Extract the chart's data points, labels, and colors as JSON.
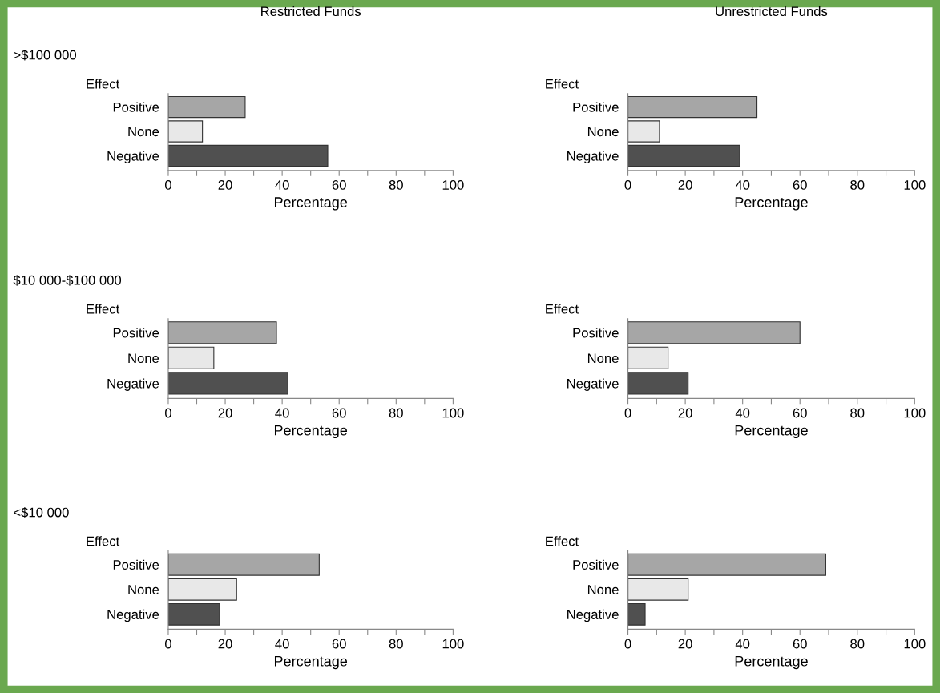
{
  "chart_data": [
    {
      "type": "bar",
      "orientation": "horizontal",
      "title": "Restricted Funds",
      "subtitle": ">$100 000",
      "ylabel": "Effect",
      "xlabel": "Percentage",
      "categories": [
        "Positive",
        "None",
        "Negative"
      ],
      "values": [
        27,
        12,
        56
      ],
      "colors": [
        "#a6a6a6",
        "#e8e8e8",
        "#505050"
      ],
      "xlim": [
        0,
        100
      ],
      "xticks": [
        0,
        {
          "value": 10,
          "label": null
        },
        20,
        {
          "value": 30,
          "label": null
        },
        40,
        {
          "value": 50,
          "label": null
        },
        60,
        {
          "value": 70,
          "label": null
        },
        80,
        {
          "value": 90,
          "label": null
        },
        100
      ]
    },
    {
      "type": "bar",
      "orientation": "horizontal",
      "title": "Unrestricted Funds",
      "ylabel": "Effect",
      "xlabel": "Percentage",
      "categories": [
        "Positive",
        "None",
        "Negative"
      ],
      "values": [
        45,
        11,
        39
      ],
      "colors": [
        "#a6a6a6",
        "#e8e8e8",
        "#505050"
      ],
      "xlim": [
        0,
        100
      ],
      "xticks": [
        0,
        {
          "value": 10,
          "label": null
        },
        20,
        {
          "value": 30,
          "label": null
        },
        40,
        {
          "value": 50,
          "label": null
        },
        60,
        {
          "value": 70,
          "label": null
        },
        80,
        {
          "value": 90,
          "label": null
        },
        100
      ]
    },
    {
      "type": "bar",
      "orientation": "horizontal",
      "subtitle": "$10 000-$100 000",
      "ylabel": "Effect",
      "xlabel": "Percentage",
      "categories": [
        "Positive",
        "None",
        "Negative"
      ],
      "values": [
        38,
        16,
        42
      ],
      "colors": [
        "#a6a6a6",
        "#e8e8e8",
        "#505050"
      ],
      "xlim": [
        0,
        100
      ],
      "xticks": [
        0,
        {
          "value": 10,
          "label": null
        },
        20,
        {
          "value": 30,
          "label": null
        },
        40,
        {
          "value": 50,
          "label": null
        },
        60,
        {
          "value": 70,
          "label": null
        },
        80,
        {
          "value": 90,
          "label": null
        },
        100
      ]
    },
    {
      "type": "bar",
      "orientation": "horizontal",
      "ylabel": "Effect",
      "xlabel": "Percentage",
      "categories": [
        "Positive",
        "None",
        "Negative"
      ],
      "values": [
        60,
        14,
        21
      ],
      "colors": [
        "#a6a6a6",
        "#e8e8e8",
        "#505050"
      ],
      "xlim": [
        0,
        100
      ],
      "xticks": [
        0,
        {
          "value": 10,
          "label": null
        },
        20,
        {
          "value": 30,
          "label": null
        },
        40,
        {
          "value": 50,
          "label": null
        },
        60,
        {
          "value": 70,
          "label": null
        },
        80,
        {
          "value": 90,
          "label": null
        },
        100
      ]
    },
    {
      "type": "bar",
      "orientation": "horizontal",
      "subtitle": "<$10 000",
      "ylabel": "Effect",
      "xlabel": "Percentage",
      "categories": [
        "Positive",
        "None",
        "Negative"
      ],
      "values": [
        53,
        24,
        18
      ],
      "colors": [
        "#a6a6a6",
        "#e8e8e8",
        "#505050"
      ],
      "xlim": [
        0,
        100
      ],
      "xticks": [
        0,
        {
          "value": 10,
          "label": null
        },
        20,
        {
          "value": 30,
          "label": null
        },
        40,
        {
          "value": 50,
          "label": null
        },
        60,
        {
          "value": 70,
          "label": null
        },
        80,
        {
          "value": 90,
          "label": null
        },
        100
      ]
    },
    {
      "type": "bar",
      "orientation": "horizontal",
      "ylabel": "Effect",
      "xlabel": "Percentage",
      "categories": [
        "Positive",
        "None",
        "Negative"
      ],
      "values": [
        69,
        21,
        6
      ],
      "colors": [
        "#a6a6a6",
        "#e8e8e8",
        "#505050"
      ],
      "xlim": [
        0,
        100
      ],
      "xticks": [
        0,
        {
          "value": 10,
          "label": null
        },
        20,
        {
          "value": 30,
          "label": null
        },
        40,
        {
          "value": 50,
          "label": null
        },
        60,
        {
          "value": 70,
          "label": null
        },
        80,
        {
          "value": 90,
          "label": null
        },
        100
      ]
    }
  ]
}
